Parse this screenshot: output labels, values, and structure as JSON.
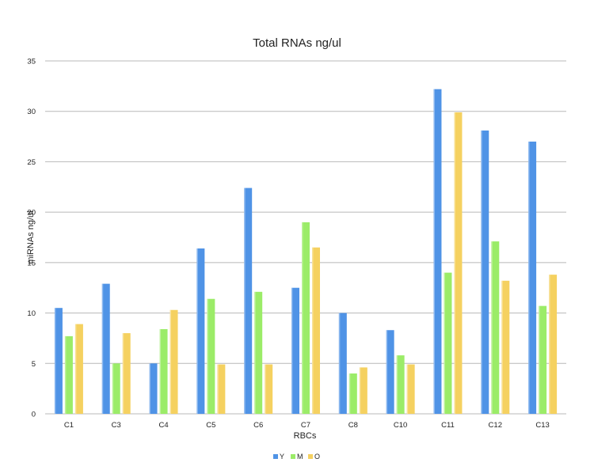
{
  "chart_data": {
    "type": "bar",
    "title": "Total RNAs ng/ul",
    "xlabel": "RBCs",
    "ylabel": "miRNAs ng/ul",
    "ylim": [
      0,
      35
    ],
    "yticks": [
      0,
      5,
      10,
      15,
      20,
      25,
      30,
      35
    ],
    "grid": true,
    "legend_position": "bottom",
    "categories": [
      "C1",
      "C3",
      "C4",
      "C5",
      "C6",
      "C7",
      "C8",
      "C10",
      "C11",
      "C12",
      "C13"
    ],
    "series": [
      {
        "name": "Y",
        "color": "#4f93e6",
        "values": [
          10.5,
          12.9,
          5.0,
          16.4,
          22.4,
          12.5,
          10.0,
          8.3,
          32.2,
          28.1,
          27.0
        ]
      },
      {
        "name": "M",
        "color": "#9bec68",
        "values": [
          7.7,
          5.0,
          8.4,
          11.4,
          12.1,
          19.0,
          4.0,
          5.8,
          14.0,
          17.1,
          10.7
        ]
      },
      {
        "name": "O",
        "color": "#f5d160",
        "values": [
          8.9,
          8.0,
          10.3,
          4.9,
          4.9,
          16.5,
          4.6,
          4.9,
          29.9,
          13.2,
          13.8
        ]
      }
    ]
  }
}
